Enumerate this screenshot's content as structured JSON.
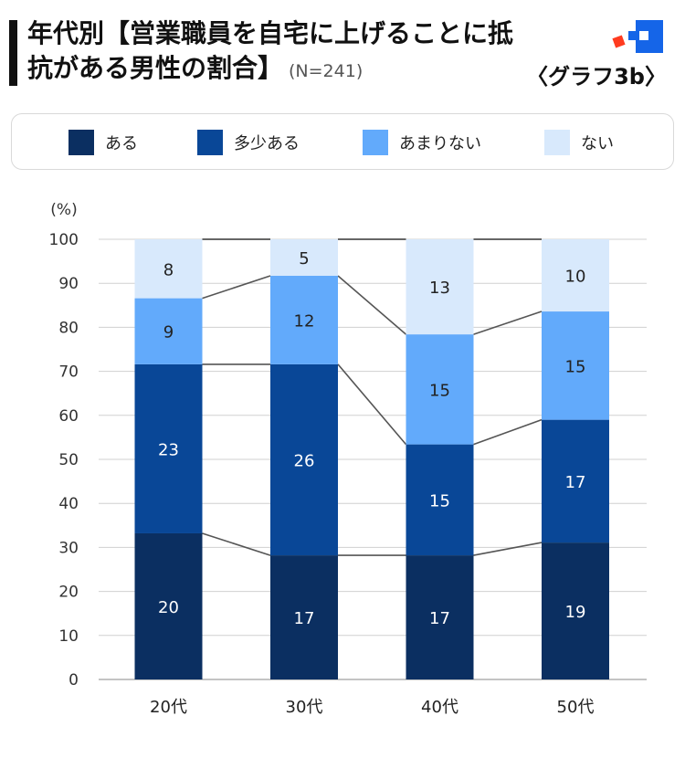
{
  "header": {
    "title_line1": "年代別【営業職員を自宅に上げることに抵",
    "title_line2": "抗がある男性の割合】",
    "sample_size": "(N=241)",
    "figure_label": "〈グラフ3b〉"
  },
  "colors": {
    "aru": "#0b2f61",
    "tashou_aru": "#094797",
    "amari_nai": "#62aafb",
    "nai": "#d8e9fc",
    "grid": "#d0d0d0",
    "connector": "#555555",
    "logo_blue": "#1565e8",
    "logo_red": "#ff3b1f"
  },
  "legend": [
    {
      "label": "ある",
      "color_key": "aru"
    },
    {
      "label": "多少ある",
      "color_key": "tashou_aru"
    },
    {
      "label": "あまりない",
      "color_key": "amari_nai"
    },
    {
      "label": "ない",
      "color_key": "nai"
    }
  ],
  "chart_data": {
    "type": "bar",
    "stacked": true,
    "ylabel": "(%)",
    "ylim": [
      0,
      100
    ],
    "yticks": [
      0,
      10,
      20,
      30,
      40,
      50,
      60,
      70,
      80,
      90,
      100
    ],
    "categories": [
      "20代",
      "30代",
      "40代",
      "50代"
    ],
    "series": [
      {
        "name": "ある",
        "color_key": "aru",
        "values": [
          20,
          17,
          17,
          19
        ],
        "label_color": "#ffffff"
      },
      {
        "name": "多少ある",
        "color_key": "tashou_aru",
        "values": [
          23,
          26,
          15,
          17
        ],
        "label_color": "#ffffff"
      },
      {
        "name": "あまりない",
        "color_key": "amari_nai",
        "values": [
          9,
          12,
          15,
          15
        ],
        "label_color": "#222222"
      },
      {
        "name": "ない",
        "color_key": "nai",
        "values": [
          8,
          5,
          13,
          10
        ],
        "label_color": "#222222"
      }
    ],
    "series_boundaries_pct": [
      [
        33.2,
        28.2,
        28.2,
        31.1
      ],
      [
        71.6,
        71.6,
        53.4,
        59.0
      ],
      [
        86.6,
        91.7,
        78.4,
        83.6
      ]
    ]
  }
}
